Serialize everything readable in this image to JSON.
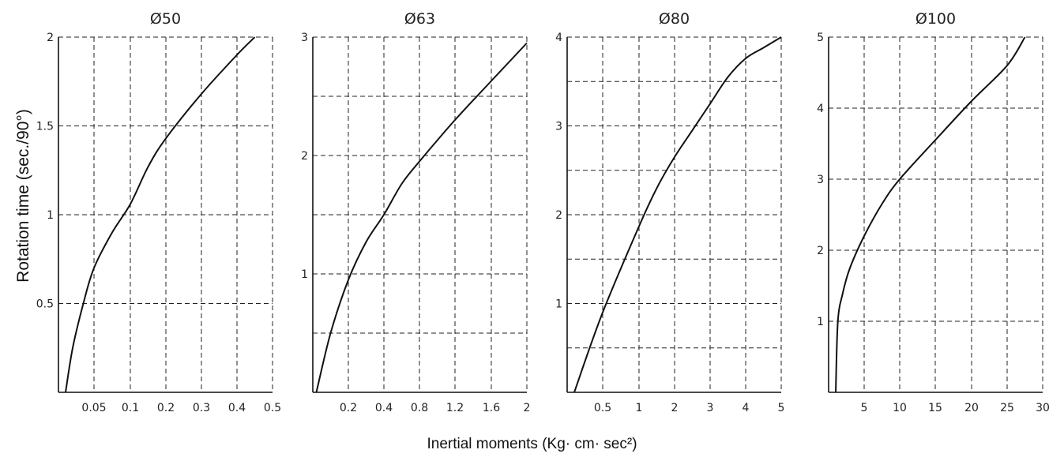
{
  "ylabel": "Rotation time (sec./90°)",
  "xlabel": "Inertial moments (Kg· cm· sec²)",
  "colors": {
    "curve": "#111111",
    "grid": "#222222",
    "axis": "#111111"
  },
  "chart_data": [
    {
      "type": "line",
      "title": "Ø50",
      "x_ticks": [
        "0.05",
        "0.1",
        "0.2",
        "0.3",
        "0.4",
        "0.5"
      ],
      "y_ticks": [
        "0.5",
        "1",
        "1.5",
        "2"
      ],
      "y_range": [
        0,
        2
      ],
      "x_tick_values": [
        0.05,
        0.1,
        0.2,
        0.3,
        0.4,
        0.5
      ],
      "grid": true,
      "series": [
        {
          "x": [
            0.01,
            0.02,
            0.035,
            0.05,
            0.075,
            0.1,
            0.15,
            0.2,
            0.3,
            0.4,
            0.45
          ],
          "y": [
            0.0,
            0.25,
            0.5,
            0.7,
            0.9,
            1.06,
            1.27,
            1.43,
            1.68,
            1.9,
            2.0
          ]
        }
      ]
    },
    {
      "type": "line",
      "title": "Ø63",
      "x_ticks": [
        "0.2",
        "0.4",
        "0.8",
        "1.2",
        "1.6",
        "2"
      ],
      "y_ticks": [
        "1",
        "2",
        "3"
      ],
      "y_range": [
        0,
        3
      ],
      "x_tick_values": [
        0.2,
        0.4,
        0.8,
        1.2,
        1.6,
        2.0
      ],
      "grid": true,
      "series": [
        {
          "x": [
            0.02,
            0.1,
            0.2,
            0.3,
            0.4,
            0.6,
            0.8,
            1.2,
            1.6,
            2.0
          ],
          "y": [
            0.0,
            0.5,
            0.95,
            1.27,
            1.5,
            1.76,
            1.95,
            2.3,
            2.63,
            2.95
          ]
        }
      ]
    },
    {
      "type": "line",
      "title": "Ø80",
      "x_ticks": [
        "0.5",
        "1",
        "2",
        "3",
        "4",
        "5"
      ],
      "y_ticks": [
        "1",
        "2",
        "3",
        "4"
      ],
      "y_range": [
        0,
        4
      ],
      "x_tick_values": [
        0.5,
        1,
        2,
        3,
        4,
        5
      ],
      "grid": true,
      "series": [
        {
          "x": [
            0.1,
            0.5,
            1.0,
            1.5,
            2.0,
            2.5,
            3.0,
            3.5,
            4.0,
            4.5,
            5.0
          ],
          "y": [
            0.0,
            0.9,
            1.87,
            2.3,
            2.65,
            2.95,
            3.25,
            3.55,
            3.76,
            3.88,
            4.0
          ]
        }
      ]
    },
    {
      "type": "line",
      "title": "Ø100",
      "x_ticks": [
        "5",
        "10",
        "15",
        "20",
        "25",
        "30"
      ],
      "y_ticks": [
        "1",
        "2",
        "3",
        "4",
        "5"
      ],
      "y_range": [
        0,
        5
      ],
      "x_tick_values": [
        5,
        10,
        15,
        20,
        25,
        30
      ],
      "grid": true,
      "series": [
        {
          "x": [
            1.0,
            1.3,
            2.0,
            3.0,
            5.0,
            7.5,
            10.0,
            15.0,
            20.0,
            25.0,
            27.5
          ],
          "y": [
            0.0,
            1.0,
            1.4,
            1.75,
            2.2,
            2.65,
            3.0,
            3.55,
            4.1,
            4.6,
            5.0
          ]
        }
      ]
    }
  ]
}
